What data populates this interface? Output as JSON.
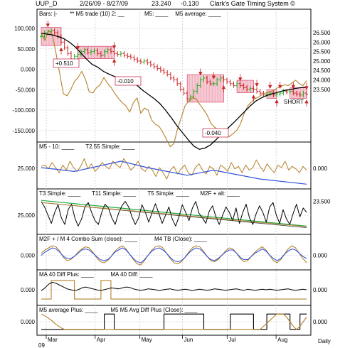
{
  "header": {
    "symbol": "UUP_D",
    "date_range": "2/26/09 - 8/27/09",
    "last": "23.240",
    "change": "-0.130",
    "system": "Clark's Gate Timing System ©"
  },
  "footer": {
    "months": [
      "Mar",
      "Apr",
      "May",
      "Jun",
      "Jul",
      "Aug"
    ],
    "year": "09",
    "period": "Daily"
  },
  "colors": {
    "up_bar": "#22aa22",
    "down_bar": "#cc2222",
    "m5": "#b5822a",
    "m5_avg": "#000000",
    "t255": "#3355dd",
    "green_line": "#22aa44",
    "box_fill": "#f3b8c6",
    "box_edge": "#cc3355",
    "gain_text": "#cc2222"
  },
  "chart_data": [
    {
      "panel": "price",
      "type": "line",
      "legend": [
        "Bars: |-",
        "** M5 trade (10) 2: __",
        "M5: ____",
        "M5 average: ____"
      ],
      "left_ticks": [
        "100.000",
        "50.000",
        "0.000",
        "-50.000",
        "-100.000",
        "-150.000"
      ],
      "left_tick_values": [
        100,
        50,
        0,
        -50,
        -100,
        -150
      ],
      "right_ticks": [
        "26.500",
        "26.000",
        "25.500",
        "25.000",
        "24.500",
        "24.000",
        "23.500"
      ],
      "right_tick_values": [
        26.5,
        26.0,
        25.5,
        25.0,
        24.5,
        24.0,
        23.5
      ],
      "ylim_right": [
        22.85,
        26.75
      ],
      "ylim_left": [
        -202,
        112
      ],
      "price_close": [
        26.3,
        26.5,
        26.55,
        26.6,
        26.5,
        26.3,
        26.0,
        25.7,
        25.4,
        25.1,
        25.25,
        25.35,
        25.5,
        25.6,
        25.45,
        25.5,
        25.55,
        25.4,
        25.3,
        25.5,
        25.6,
        25.5,
        25.4,
        25.35,
        25.4,
        25.3,
        25.25,
        25.2,
        25.1,
        25.0,
        24.95,
        25.0,
        24.9,
        24.8,
        24.7,
        24.6,
        24.5,
        24.4,
        24.3,
        24.1,
        24.0,
        23.8,
        23.5,
        23.3,
        23.0,
        23.1,
        23.4,
        23.7,
        24.0,
        24.1,
        23.9,
        23.8,
        23.8,
        24.0,
        24.1,
        24.0,
        23.9,
        23.8,
        23.7,
        23.8,
        23.7,
        23.6,
        23.5,
        23.55,
        23.5,
        23.4,
        23.3,
        23.2,
        23.25,
        23.3,
        23.2,
        23.25,
        23.3,
        23.4,
        23.35,
        23.4,
        23.3,
        23.25,
        23.2,
        23.3,
        23.24
      ],
      "m5": [
        88,
        70,
        95,
        85,
        40,
        -10,
        -60,
        -65,
        -50,
        -30,
        -20,
        -5,
        -25,
        -55,
        -58,
        -45,
        -38,
        -20,
        -35,
        -45,
        -60,
        -72,
        -82,
        -90,
        -105,
        -82,
        -70,
        -108,
        -95,
        -100,
        -125,
        -135,
        -140,
        -155,
        -172,
        -190,
        -182,
        -145,
        -118,
        -90,
        -78,
        -70,
        -72,
        -86,
        -98,
        -112,
        -132,
        -142,
        -148,
        -162,
        -155,
        -165,
        -158,
        -150,
        -135,
        -110,
        -90,
        -80,
        -72,
        -68,
        -62,
        -58,
        -56,
        -52,
        -46,
        -43,
        -38,
        -40,
        -34,
        -27,
        -35,
        -40,
        -28
      ],
      "m5_average": [
        88,
        86,
        84,
        80,
        75,
        66,
        55,
        40,
        25,
        12,
        5,
        -5,
        -12,
        -18,
        -22,
        -28,
        -32,
        -40,
        -52,
        -62,
        -72,
        -84,
        -100,
        -118,
        -138,
        -155,
        -172,
        -188,
        -196,
        -193,
        -185,
        -172,
        -158,
        -145,
        -132,
        -118,
        -104,
        -90,
        -78,
        -70,
        -64,
        -60,
        -56,
        -52,
        -50,
        -47,
        -45,
        -44
      ],
      "trade_boxes": [
        {
          "from_index": 0,
          "to_index": 6,
          "label": ""
        },
        {
          "from_index": 11,
          "to_index": 22,
          "label": "-0.010"
        },
        {
          "from_index": 44,
          "to_index": 55,
          "label": ""
        },
        {
          "from_index": 59,
          "to_index": 64,
          "label": "-0.040"
        },
        {
          "from_index": 68,
          "to_index": 71,
          "label": ""
        },
        {
          "from_index": 75,
          "to_index": 80,
          "label": ""
        }
      ],
      "annotations": [
        "+0.510",
        "-0.010",
        "-0.040",
        "SHORT"
      ]
    },
    {
      "panel": "m5-10",
      "type": "line",
      "legend": [
        "M5 - 10: ____",
        "T2.55 Simple: ____"
      ],
      "left_ticks": [
        "25.000"
      ],
      "left_tick_values": [
        25
      ],
      "right_ticks": [
        "0.000"
      ],
      "right_tick_values": [
        0
      ],
      "ylim": [
        -3,
        55
      ],
      "m5_10": [
        28,
        30,
        24,
        34,
        26,
        18,
        30,
        22,
        36,
        26,
        20,
        28,
        40,
        24,
        32,
        20,
        26,
        34,
        28,
        24,
        36,
        30,
        26,
        40,
        32,
        22,
        28,
        36,
        24,
        20,
        28,
        22,
        12,
        26,
        18,
        8,
        22,
        28,
        16,
        24,
        30,
        18,
        14,
        26,
        32,
        22,
        16,
        28,
        24,
        14,
        30,
        26,
        20,
        34,
        24,
        28,
        18,
        30,
        22,
        26,
        38,
        28,
        20,
        32,
        24,
        18,
        30,
        26,
        36,
        22,
        28,
        24,
        18,
        28,
        22
      ],
      "t255": [
        [
          0,
          26
        ],
        [
          10,
          20
        ],
        [
          24,
          36
        ],
        [
          32,
          26
        ],
        [
          44,
          14
        ],
        [
          52,
          22
        ],
        [
          66,
          8
        ],
        [
          80,
          0
        ]
      ]
    },
    {
      "panel": "t3",
      "type": "line",
      "legend": [
        "T3 Simple: ____",
        "T11 Simple: ____",
        "T5 Simple: ____",
        "M2F + alt: ____"
      ],
      "left_ticks": [
        "25.000"
      ],
      "left_tick_values": [
        25
      ],
      "right_ticks": [
        "23.500"
      ],
      "right_tick_values": [
        23.5
      ],
      "ylim": [
        -5,
        60
      ],
      "t3": [
        50,
        40,
        25,
        10,
        30,
        44,
        20,
        8,
        35,
        45,
        20,
        5,
        18,
        40,
        48,
        30,
        15,
        8,
        30,
        45,
        38,
        20,
        8,
        28,
        42,
        50,
        40,
        22,
        8,
        20,
        44,
        30,
        12,
        30,
        46,
        28,
        10,
        25,
        40,
        18,
        5,
        22,
        44,
        30,
        15,
        38,
        50,
        28,
        20,
        10,
        32,
        42,
        22,
        8,
        25,
        40,
        30,
        15,
        38,
        10,
        30,
        45,
        20,
        8,
        28,
        42,
        30,
        12,
        40,
        48,
        25,
        10,
        35,
        18,
        8,
        28,
        45,
        22,
        38,
        30
      ],
      "trend_black": [
        [
          0,
          48
        ],
        [
          80,
          2
        ]
      ],
      "trend_green": [
        [
          0,
          52
        ],
        [
          80,
          5
        ]
      ]
    },
    {
      "panel": "m2f",
      "type": "line",
      "legend": [
        "M2F + / M 4 Combo Sum (close): ____",
        "M4 TB (Close): ____"
      ],
      "left_ticks": [
        "0.000"
      ],
      "left_tick_values": [
        0
      ],
      "right_ticks": [
        "0.000"
      ],
      "right_tick_values": [
        0
      ],
      "ylim": [
        -1.1,
        1.3
      ],
      "combo_sum": [
        0.2,
        0.5,
        0.7,
        0.9,
        0.8,
        0.4,
        -0.2,
        -0.5,
        -0.4,
        -0.1,
        0.3,
        0.6,
        0.8,
        0.7,
        0.3,
        -0.2,
        -0.6,
        -0.7,
        -0.5,
        -0.1,
        0.4,
        0.7,
        0.9,
        0.6,
        0.1,
        -0.4,
        -0.8,
        -0.9,
        -0.5,
        0.0,
        0.5,
        0.8,
        0.9,
        0.7,
        0.2,
        -0.3,
        -0.7,
        -0.8,
        -0.6,
        -0.2,
        0.3,
        0.7,
        0.9,
        0.8,
        0.4,
        -0.1,
        -0.5,
        -0.6,
        -0.4,
        0.0,
        0.4,
        0.7,
        0.6,
        0.2,
        -0.3,
        -0.6,
        -0.5,
        -0.1,
        0.3,
        0.6,
        0.8,
        0.5,
        0.0,
        -0.5,
        -0.7,
        -0.4,
        0.1,
        0.6,
        0.9,
        0.7,
        0.2,
        -0.3,
        -0.7
      ],
      "m4_tb": [
        0.0,
        0.3,
        0.5,
        0.7,
        0.6,
        0.3,
        -0.1,
        -0.3,
        -0.3,
        -0.1,
        0.2,
        0.5,
        0.6,
        0.5,
        0.2,
        -0.1,
        -0.4,
        -0.5,
        -0.4,
        -0.1,
        0.3,
        0.5,
        0.7,
        0.5,
        0.1,
        -0.3,
        -0.6,
        -0.7,
        -0.4,
        0.0,
        0.4,
        0.6,
        0.7,
        0.5,
        0.2,
        -0.2,
        -0.5,
        -0.6,
        -0.5,
        -0.2,
        0.2,
        0.5,
        0.7,
        0.6,
        0.3,
        -0.1,
        -0.4,
        -0.5,
        -0.3,
        0.0,
        0.3,
        0.5,
        0.5,
        0.2,
        -0.2,
        -0.4,
        -0.4,
        -0.1,
        0.2,
        0.4,
        0.6,
        0.4,
        0.0,
        -0.3,
        -0.5,
        -0.3,
        0.1,
        0.4,
        0.6,
        0.5,
        0.2,
        -0.1,
        -0.3
      ]
    },
    {
      "panel": "ma40",
      "type": "line",
      "legend": [
        "MA 40 Diff Plus: ____",
        "MA 40 Diff: ____"
      ],
      "left_ticks": [
        "0.000"
      ],
      "left_tick_values": [
        0
      ],
      "right_ticks": [
        "0.000"
      ],
      "right_tick_values": [
        0
      ],
      "ylim": [
        -1.3,
        1.3
      ],
      "diff_plus_steps": [
        [
          0,
          -1
        ],
        [
          3,
          -1
        ],
        [
          3,
          1
        ],
        [
          10,
          1
        ],
        [
          10,
          -1
        ],
        [
          18,
          -1
        ],
        [
          18,
          1
        ],
        [
          21,
          1
        ],
        [
          21,
          -1
        ],
        [
          80,
          -1
        ]
      ],
      "diff": [
        -0.1,
        0.2,
        0.6,
        0.8,
        0.7,
        0.5,
        0.3,
        0.1,
        0.0,
        -0.1,
        0.0,
        0.2,
        0.3,
        0.2,
        0.1,
        0.0,
        -0.1,
        0.0,
        0.1,
        0.2,
        0.15,
        0.1,
        0.2,
        0.3,
        0.25,
        0.1,
        0.0,
        -0.05,
        0.0,
        0.1,
        0.05,
        0.0,
        -0.1,
        0.0,
        0.05,
        0.1,
        0.0,
        -0.05,
        0.0,
        0.05,
        0.0,
        -0.1,
        0.0,
        0.05,
        0.0,
        -0.05,
        0.0,
        0.1,
        0.05,
        0.0,
        -0.05,
        0.0,
        0.05,
        0.1,
        0.0,
        -0.05,
        0.05,
        0.0,
        -0.05,
        0.0,
        0.05,
        0.0,
        0.05,
        0.0,
        -0.05,
        0.0,
        0.05,
        0.1,
        0.0,
        -0.05,
        0.0,
        0.05,
        0.0
      ]
    },
    {
      "panel": "m5avgplus",
      "type": "line",
      "legend": [
        "M5 average Plus: ____",
        "M5 M5 Avg Diff Plus (Close): ____"
      ],
      "left_ticks": [
        "0.000"
      ],
      "left_tick_values": [
        0
      ],
      "right_ticks": [
        "0.000"
      ],
      "right_tick_values": [
        0
      ],
      "ylim": [
        -1.3,
        1.3
      ],
      "avg_plus": [
        1.0,
        0.8,
        0.5,
        0.2,
        -0.2,
        -0.5,
        -0.8,
        -1.0,
        -1.0,
        -1.0,
        -1.0,
        -1.0,
        -1.0,
        -1.0,
        -1.0,
        -1.0,
        -1.0,
        -1.0,
        -1.0,
        -1.0,
        -1.0,
        -1.0,
        -1.0,
        -1.0,
        -1.0,
        -1.0,
        -1.0,
        -1.0,
        -1.0,
        -1.0,
        -1.0,
        -1.0,
        -1.0,
        -1.0,
        -1.0,
        -1.0,
        -1.0,
        -1.0,
        -1.0,
        -1.0,
        -1.0,
        -1.0,
        -1.0,
        -1.0,
        -1.0,
        -1.0,
        -1.0,
        -1.0,
        -1.0,
        -1.0,
        -1.0,
        -1.0,
        -1.0,
        -1.0,
        -1.0,
        -1.0,
        -1.0,
        -1.0,
        -1.0,
        -1.0,
        -1.0,
        -1.0,
        -1.0,
        -1.0,
        -1.0,
        -1.0,
        -1.0,
        -0.6,
        -0.2,
        0.2,
        0.6,
        1.0,
        1.0,
        1.0,
        0.6,
        0.0,
        -0.6,
        -1.0,
        -0.6,
        0.0,
        0.6
      ],
      "diff_plus_steps": [
        [
          0,
          -1
        ],
        [
          19,
          -1
        ],
        [
          19,
          1
        ],
        [
          22,
          1
        ],
        [
          22,
          -1
        ],
        [
          37,
          -1
        ],
        [
          37,
          1
        ],
        [
          49,
          1
        ],
        [
          49,
          -1
        ],
        [
          57,
          -1
        ],
        [
          57,
          1
        ],
        [
          64,
          1
        ],
        [
          64,
          -1
        ],
        [
          68,
          -1
        ],
        [
          68,
          1
        ],
        [
          75,
          1
        ],
        [
          75,
          -1
        ],
        [
          78,
          -1
        ],
        [
          78,
          1
        ],
        [
          80,
          1
        ]
      ]
    }
  ]
}
